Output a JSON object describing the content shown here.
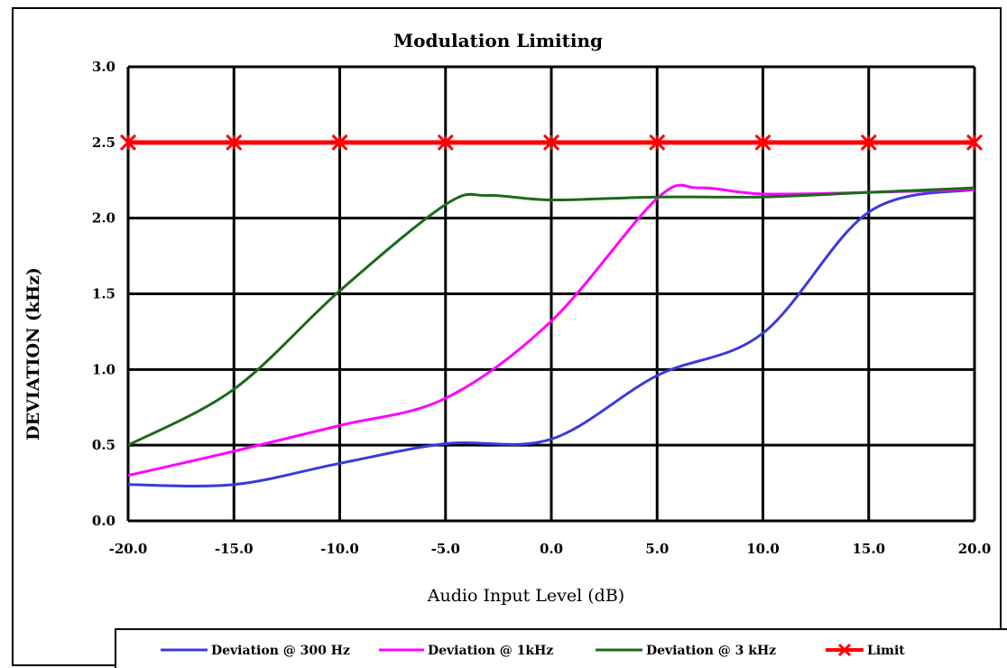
{
  "chart_data": {
    "type": "line",
    "title": "Modulation Limiting",
    "xlabel": "Audio Input Level (dB)",
    "ylabel": "DEVIATION (kHz)",
    "xlim": [
      -20,
      20
    ],
    "ylim": [
      0,
      3
    ],
    "x_ticks": [
      "-20.0",
      "-15.0",
      "-10.0",
      "-5.0",
      "0.0",
      "5.0",
      "10.0",
      "15.0",
      "20.0"
    ],
    "y_ticks": [
      "0.0",
      "0.5",
      "1.0",
      "1.5",
      "2.0",
      "2.5",
      "3.0"
    ],
    "grid": true,
    "legend_position": "bottom",
    "series": [
      {
        "name": "Deviation @ 300 Hz",
        "color": "#3b3bdc",
        "x": [
          -20,
          -15,
          -10,
          -5,
          0,
          5,
          10,
          15,
          20
        ],
        "values": [
          0.24,
          0.24,
          0.38,
          0.51,
          0.54,
          0.96,
          1.24,
          2.04,
          2.19
        ]
      },
      {
        "name": "Deviation @ 1kHz",
        "color": "#ff00ff",
        "x": [
          -20,
          -15,
          -10,
          -5,
          0,
          5,
          7,
          10,
          15,
          20
        ],
        "values": [
          0.3,
          0.46,
          0.63,
          0.81,
          1.32,
          2.13,
          2.2,
          2.16,
          2.17,
          2.19
        ]
      },
      {
        "name": "Deviation @ 3 kHz",
        "color": "#1a6b1a",
        "x": [
          -20,
          -15,
          -10,
          -5,
          -3,
          0,
          5,
          10,
          15,
          20
        ],
        "values": [
          0.5,
          0.87,
          1.52,
          2.09,
          2.15,
          2.12,
          2.14,
          2.14,
          2.17,
          2.2
        ]
      },
      {
        "name": "Limit",
        "color": "#ff0000",
        "marker": "x",
        "x": [
          -20,
          -15,
          -10,
          -5,
          0,
          5,
          10,
          15,
          20
        ],
        "values": [
          2.5,
          2.5,
          2.5,
          2.5,
          2.5,
          2.5,
          2.5,
          2.5,
          2.5
        ]
      }
    ]
  }
}
